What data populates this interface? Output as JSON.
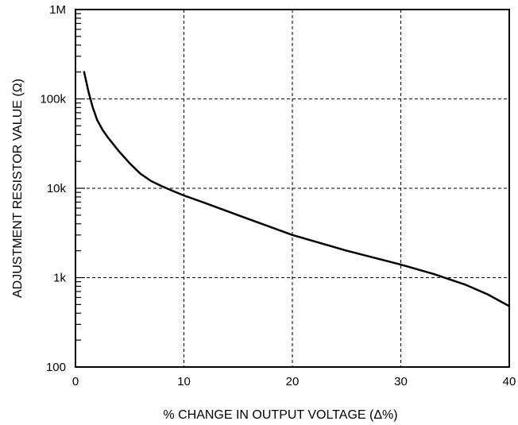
{
  "chart_data": {
    "type": "line",
    "title": "",
    "xlabel": "% CHANGE IN OUTPUT VOLTAGE (Δ%)",
    "ylabel": "ADJUSTMENT RESISTOR VALUE (Ω)",
    "xlim": [
      0,
      40
    ],
    "ylim": [
      100,
      1000000
    ],
    "yscale": "log",
    "grid": true,
    "x_ticks": [
      {
        "value": 0,
        "label": "0"
      },
      {
        "value": 10,
        "label": "10"
      },
      {
        "value": 20,
        "label": "20"
      },
      {
        "value": 30,
        "label": "30"
      },
      {
        "value": 40,
        "label": "40"
      }
    ],
    "y_ticks": [
      {
        "value": 100,
        "label": "100"
      },
      {
        "value": 1000,
        "label": "1k"
      },
      {
        "value": 10000,
        "label": "10k"
      },
      {
        "value": 100000,
        "label": "100k"
      },
      {
        "value": 1000000,
        "label": "1M"
      }
    ],
    "series": [
      {
        "x": [
          0.8,
          1.2,
          1.6,
          2.0,
          2.5,
          3.0,
          4.0,
          5.0,
          6.0,
          7.0,
          8.0,
          9.0,
          10.0,
          12.0,
          15.0,
          20.0,
          25.0,
          30.0,
          33.0,
          36.0,
          38.0,
          40.0
        ],
        "y": [
          200000,
          120000,
          80000,
          58000,
          45000,
          37000,
          26000,
          19000,
          14500,
          12000,
          10500,
          9300,
          8300,
          6800,
          5000,
          3000,
          2000,
          1400,
          1100,
          830,
          650,
          480
        ]
      }
    ]
  }
}
